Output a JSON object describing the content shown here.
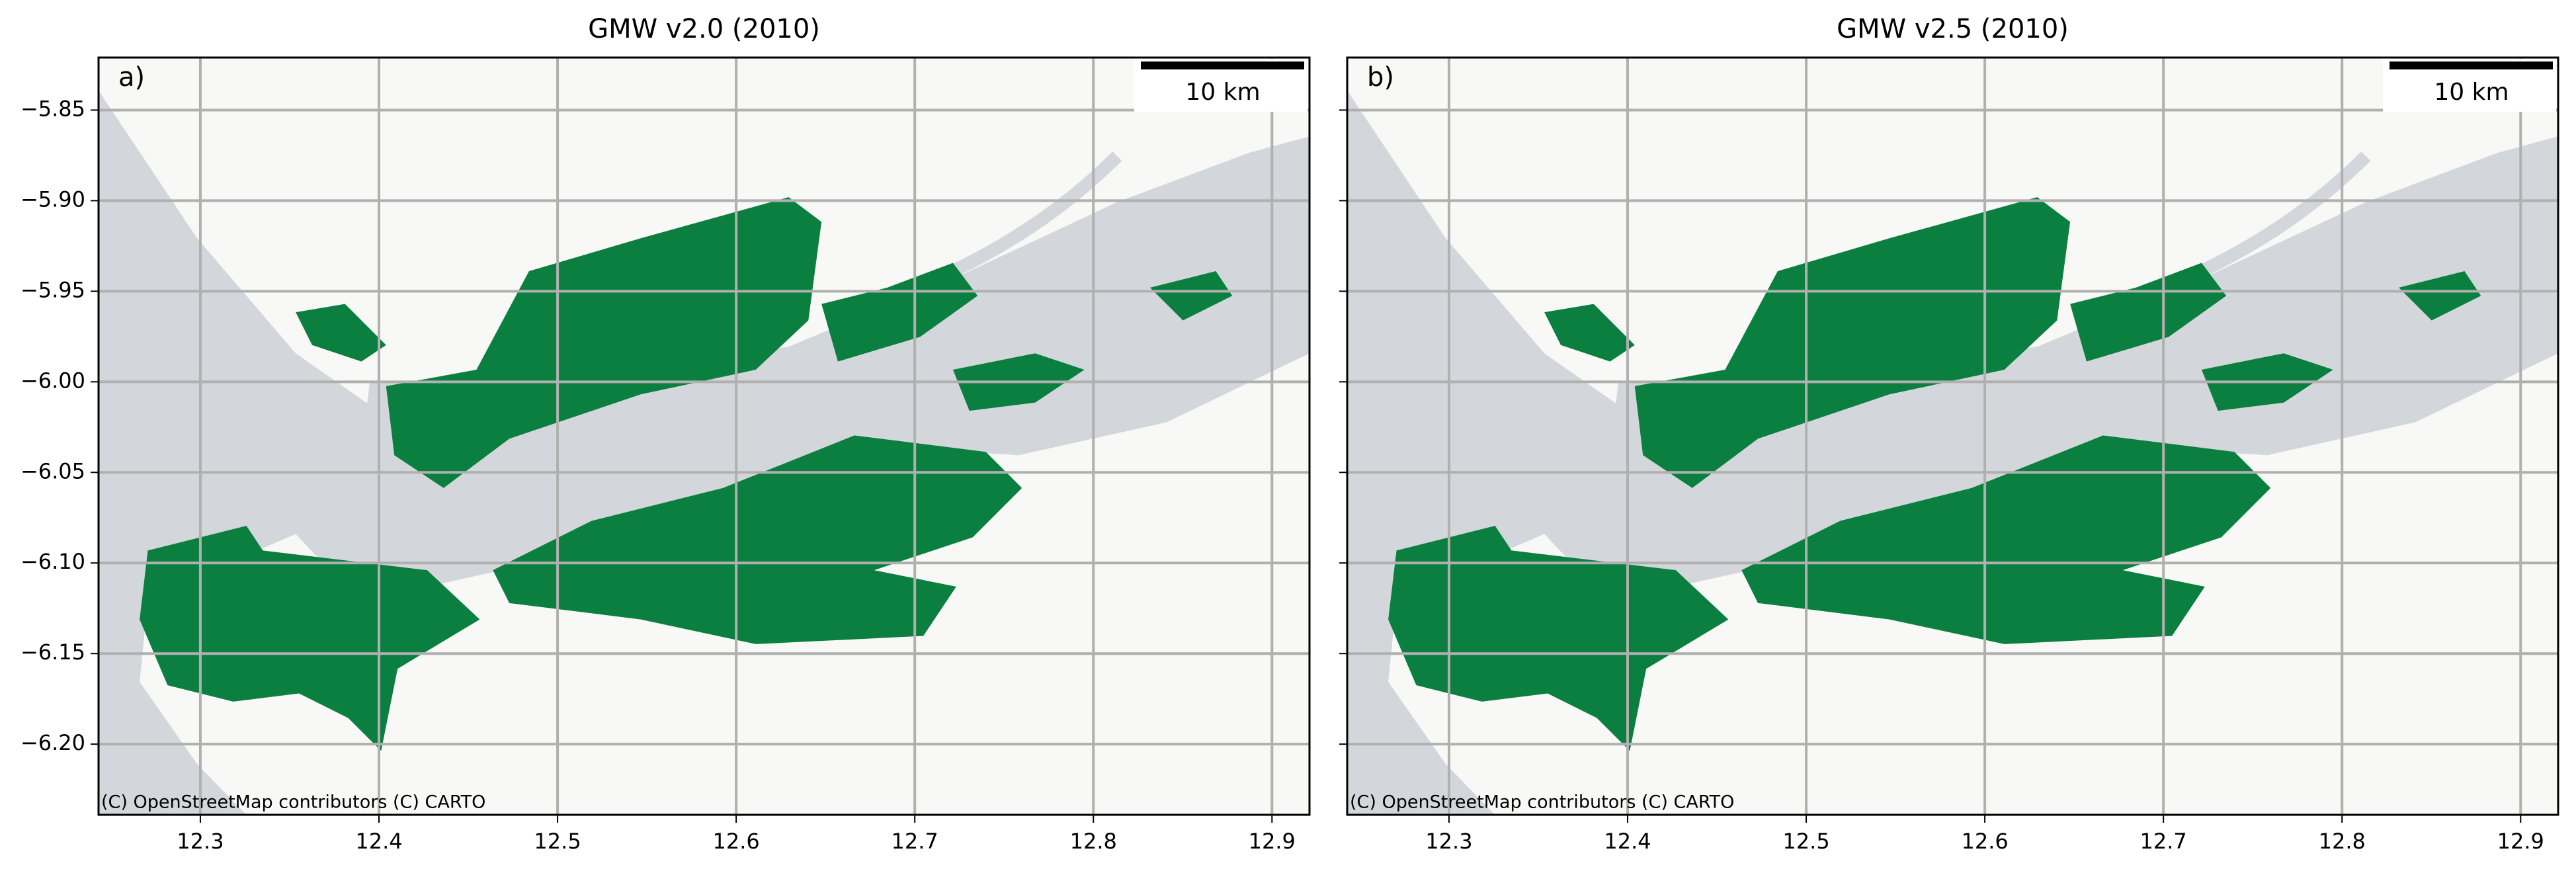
{
  "chart_data": [
    {
      "type": "map",
      "title": "GMW v2.0 (2010)",
      "panel_label": "a)",
      "scale_bar": "10 km",
      "attribution": "(C) OpenStreetMap contributors (C) CARTO",
      "xlim": [
        12.243,
        12.921
      ],
      "ylim": [
        -6.239,
        -5.821
      ],
      "xticks": [
        12.3,
        12.4,
        12.5,
        12.6,
        12.7,
        12.8,
        12.9
      ],
      "yticks": [
        {
          "value": -6.2,
          "label": "−6.20"
        },
        {
          "value": -6.15,
          "label": "−6.15"
        },
        {
          "value": -6.1,
          "label": "−6.10"
        },
        {
          "value": -6.05,
          "label": "−6.05"
        },
        {
          "value": -6.0,
          "label": "−6.00"
        },
        {
          "value": -5.95,
          "label": "−5.95"
        },
        {
          "value": -5.9,
          "label": "−5.90"
        },
        {
          "value": -5.85,
          "label": "−5.85"
        }
      ],
      "grid": true,
      "color": "#0b7f3f"
    },
    {
      "type": "map",
      "title": "GMW v2.5 (2010)",
      "panel_label": "b)",
      "scale_bar": "10 km",
      "attribution": "(C) OpenStreetMap contributors (C) CARTO",
      "xlim": [
        12.243,
        12.921
      ],
      "ylim": [
        -6.239,
        -5.821
      ],
      "xticks": [
        12.3,
        12.4,
        12.5,
        12.6,
        12.7,
        12.8,
        12.9
      ],
      "yticks": [
        -6.2,
        -6.15,
        -6.1,
        -6.05,
        -6.0,
        -5.95,
        -5.9,
        -5.85
      ],
      "grid": true,
      "color": "#0b7f3f"
    }
  ]
}
